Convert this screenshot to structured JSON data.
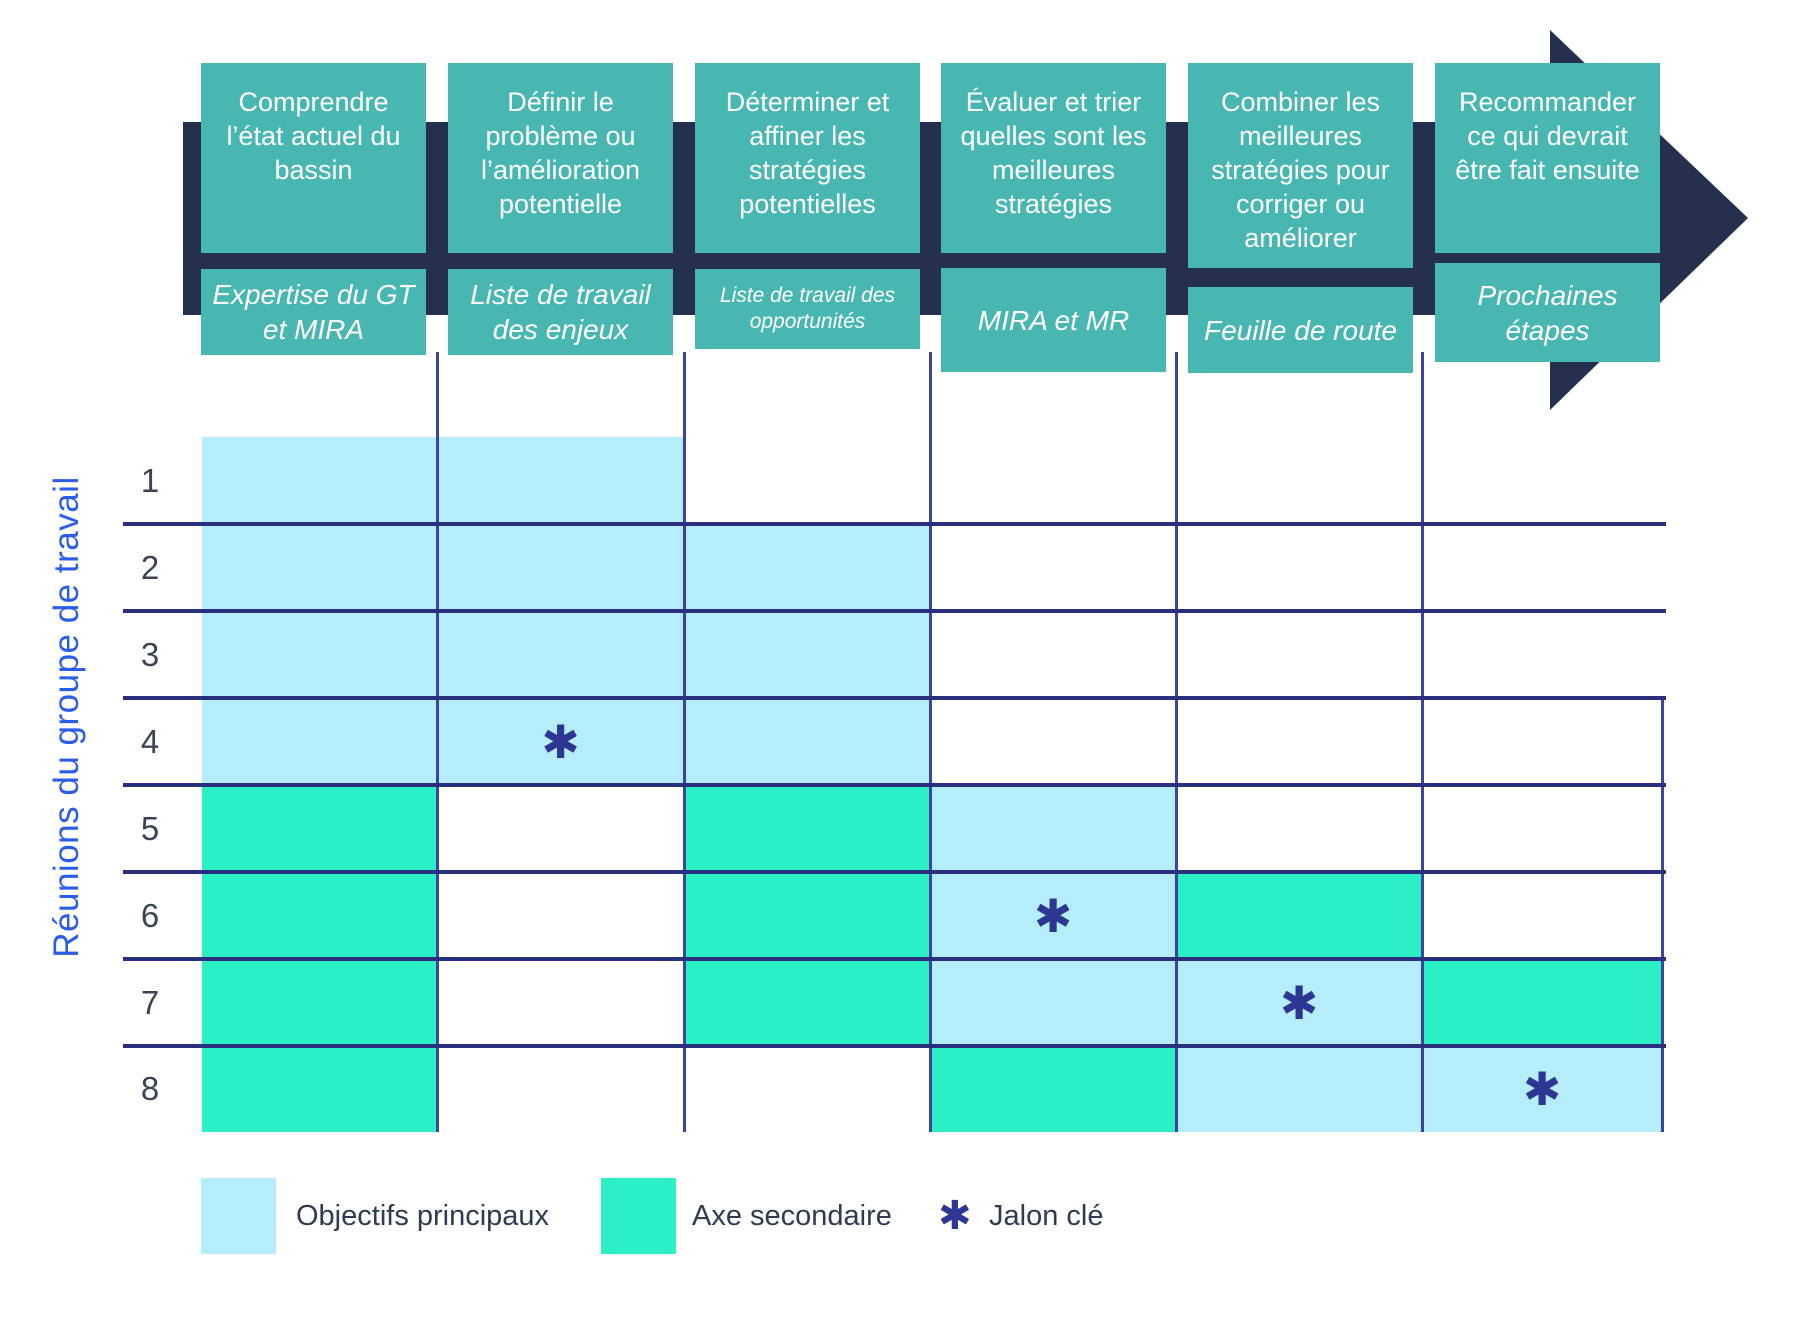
{
  "phases": [
    {
      "title": "Comprendre l’état actuel du bassin",
      "subtitle": "Expertise du GT et MIRA"
    },
    {
      "title": "Définir le problème ou l’amélioration potentielle",
      "subtitle": "Liste de travail des enjeux"
    },
    {
      "title": "Déterminer et affiner les stratégies potentielles",
      "subtitle": "Liste de travail des opportunités"
    },
    {
      "title": "Évaluer et trier quelles sont les meilleures stratégies",
      "subtitle": "MIRA et MR"
    },
    {
      "title": "Combiner les meilleures stratégies pour corriger ou améliorer",
      "subtitle": "Feuille de route"
    },
    {
      "title": "Recommander ce qui devrait être fait ensuite",
      "subtitle": "Prochaines étapes"
    }
  ],
  "axis_label": "Réunions du groupe de travail",
  "matrix": {
    "rows": [
      {
        "label": "1",
        "cells": [
          "P",
          "P",
          "",
          "",
          "",
          ""
        ],
        "milestone_col": null
      },
      {
        "label": "2",
        "cells": [
          "P",
          "P",
          "P",
          "",
          "",
          ""
        ],
        "milestone_col": null
      },
      {
        "label": "3",
        "cells": [
          "P",
          "P",
          "P",
          "",
          "",
          ""
        ],
        "milestone_col": null
      },
      {
        "label": "4",
        "cells": [
          "P",
          "P",
          "P",
          "",
          "",
          ""
        ],
        "milestone_col": 2
      },
      {
        "label": "5",
        "cells": [
          "S",
          "",
          "S",
          "P",
          "",
          ""
        ],
        "milestone_col": null
      },
      {
        "label": "6",
        "cells": [
          "S",
          "",
          "S",
          "P",
          "S",
          ""
        ],
        "milestone_col": 4
      },
      {
        "label": "7",
        "cells": [
          "S",
          "",
          "S",
          "P",
          "P",
          "S"
        ],
        "milestone_col": 5
      },
      {
        "label": "8",
        "cells": [
          "S",
          "",
          "",
          "S",
          "P",
          "P"
        ],
        "milestone_col": 6
      }
    ]
  },
  "legend": {
    "primary": "Objectifs principaux",
    "secondary": "Axe secondaire",
    "milestone": "Jalon clé"
  },
  "icons": {
    "milestone_glyph": "✱"
  },
  "colors": {
    "primary_fill": "#b5edfb",
    "secondary_fill": "#2bf0c6",
    "phase_teal": "#48b7b2",
    "arrow_navy": "#25304e",
    "grid_line": "#2a2f7e",
    "milestone": "#2e3694",
    "axis_label_blue": "#2c5cea"
  }
}
